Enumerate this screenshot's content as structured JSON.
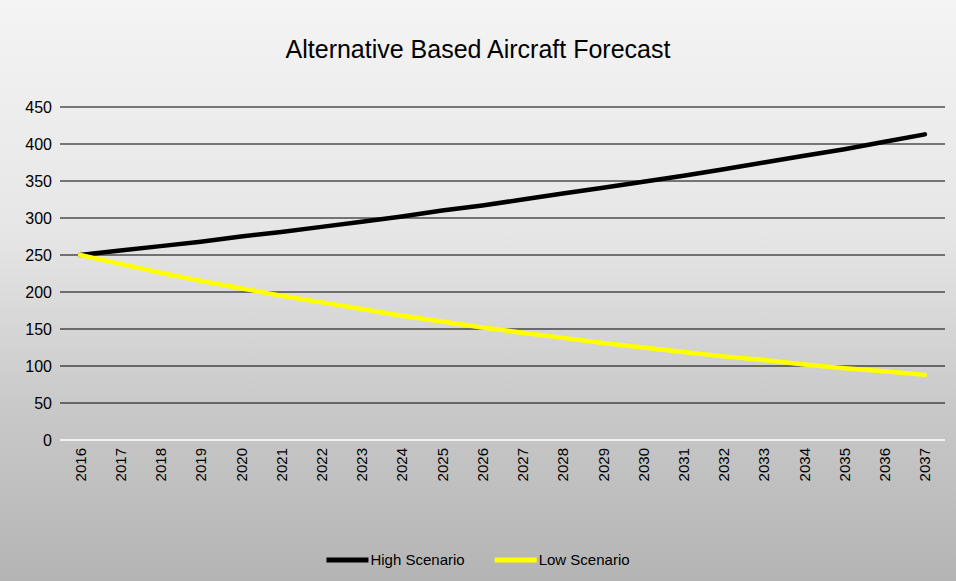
{
  "chart_data": {
    "type": "line",
    "title": "Alternative Based Aircraft Forecast",
    "categories": [
      "2016",
      "2017",
      "2018",
      "2019",
      "2020",
      "2021",
      "2022",
      "2023",
      "2024",
      "2025",
      "2026",
      "2027",
      "2028",
      "2029",
      "2030",
      "2031",
      "2032",
      "2033",
      "2034",
      "2035",
      "2036",
      "2037"
    ],
    "series": [
      {
        "name": "High Scenario",
        "color": "#000000",
        "values": [
          250,
          256,
          262,
          268,
          275,
          281,
          288,
          295,
          302,
          310,
          317,
          325,
          333,
          341,
          349,
          357,
          366,
          375,
          384,
          393,
          403,
          413
        ]
      },
      {
        "name": "Low Scenario",
        "color": "#ffff00",
        "values": [
          250,
          238,
          226,
          215,
          205,
          195,
          186,
          177,
          168,
          160,
          152,
          145,
          138,
          131,
          125,
          119,
          113,
          108,
          102,
          97,
          93,
          88
        ]
      }
    ],
    "ylim": [
      0,
      450
    ],
    "yticks": [
      0,
      50,
      100,
      150,
      200,
      250,
      300,
      350,
      400,
      450
    ],
    "grid": true,
    "legend": "bottom"
  }
}
